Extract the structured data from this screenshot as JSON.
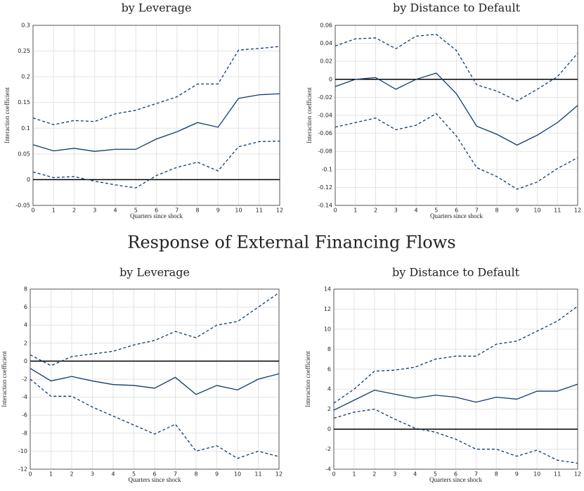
{
  "heading": "Response of External Financing Flows",
  "chart_data": [
    {
      "type": "line",
      "title": "by Leverage",
      "xlabel": "Quarters since shock",
      "ylabel": "Interaction coefficient",
      "x": [
        0,
        1,
        2,
        3,
        4,
        5,
        6,
        7,
        8,
        9,
        10,
        11,
        12
      ],
      "xlim": [
        0,
        12
      ],
      "xticks": [
        0,
        1,
        2,
        3,
        4,
        5,
        6,
        7,
        8,
        9,
        10,
        11,
        12
      ],
      "ylim": [
        -0.05,
        0.3
      ],
      "yticks": [
        -0.05,
        0,
        0.05,
        0.1,
        0.15,
        0.2,
        0.25,
        0.3
      ],
      "grid": true,
      "reference_line": 0,
      "reference_color": "#000000",
      "series": [
        {
          "color": "#0d3b6e",
          "dash": false,
          "values": [
            0.068,
            0.056,
            0.061,
            0.055,
            0.059,
            0.059,
            0.079,
            0.093,
            0.111,
            0.102,
            0.158,
            0.165,
            0.167
          ]
        },
        {
          "color": "#0d3b6e",
          "dash": true,
          "values": [
            0.12,
            0.107,
            0.115,
            0.113,
            0.128,
            0.135,
            0.148,
            0.161,
            0.186,
            0.186,
            0.252,
            0.255,
            0.259
          ]
        },
        {
          "color": "#0d3b6e",
          "dash": true,
          "values": [
            0.015,
            0.004,
            0.006,
            -0.003,
            -0.01,
            -0.016,
            0.008,
            0.024,
            0.034,
            0.017,
            0.064,
            0.074,
            0.075
          ]
        }
      ]
    },
    {
      "type": "line",
      "title": "by Distance to Default",
      "xlabel": "Quarters since shock",
      "ylabel": "Interaction coefficient",
      "x": [
        0,
        1,
        2,
        3,
        4,
        5,
        6,
        7,
        8,
        9,
        10,
        11,
        12
      ],
      "xlim": [
        0,
        12
      ],
      "xticks": [
        0,
        1,
        2,
        3,
        4,
        5,
        6,
        7,
        8,
        9,
        10,
        11,
        12
      ],
      "ylim": [
        -0.14,
        0.06
      ],
      "yticks": [
        -0.14,
        -0.12,
        -0.1,
        -0.08,
        -0.06,
        -0.04,
        -0.02,
        0,
        0.02,
        0.04,
        0.06
      ],
      "grid": true,
      "reference_line": 0,
      "reference_color": "#000000",
      "series": [
        {
          "color": "#0d3b6e",
          "dash": false,
          "values": [
            -0.008,
            0,
            0.002,
            -0.011,
            0,
            0.007,
            -0.016,
            -0.052,
            -0.061,
            -0.073,
            -0.062,
            -0.048,
            -0.029
          ]
        },
        {
          "color": "#0d3b6e",
          "dash": true,
          "values": [
            0.037,
            0.045,
            0.046,
            0.034,
            0.048,
            0.05,
            0.032,
            -0.006,
            -0.013,
            -0.024,
            -0.011,
            0.003,
            0.029
          ]
        },
        {
          "color": "#0d3b6e",
          "dash": true,
          "values": [
            -0.053,
            -0.048,
            -0.043,
            -0.056,
            -0.051,
            -0.038,
            -0.063,
            -0.098,
            -0.108,
            -0.122,
            -0.114,
            -0.099,
            -0.087
          ]
        }
      ]
    },
    {
      "type": "line",
      "title": "by Leverage",
      "xlabel": "Quarters since shock",
      "ylabel": "Interaction coefficient",
      "x": [
        0,
        1,
        2,
        3,
        4,
        5,
        6,
        7,
        8,
        9,
        10,
        11,
        12
      ],
      "xlim": [
        0,
        12
      ],
      "xticks": [
        0,
        1,
        2,
        3,
        4,
        5,
        6,
        7,
        8,
        9,
        10,
        11,
        12
      ],
      "ylim": [
        -12,
        8
      ],
      "yticks": [
        -12,
        -10,
        -8,
        -6,
        -4,
        -2,
        0,
        2,
        4,
        6,
        8
      ],
      "grid": true,
      "reference_line": 0,
      "reference_color": "#000000",
      "series": [
        {
          "color": "#0d3b6e",
          "dash": false,
          "values": [
            -0.8,
            -2.2,
            -1.7,
            -2.2,
            -2.6,
            -2.7,
            -3.0,
            -1.8,
            -3.7,
            -2.7,
            -3.2,
            -2.0,
            -1.4
          ]
        },
        {
          "color": "#0d3b6e",
          "dash": true,
          "values": [
            0.7,
            -0.5,
            0.5,
            0.8,
            1.1,
            1.8,
            2.3,
            3.3,
            2.6,
            4.0,
            4.4,
            6.0,
            7.6
          ]
        },
        {
          "color": "#0d3b6e",
          "dash": true,
          "values": [
            -2.0,
            -3.9,
            -3.9,
            -5.1,
            -6.1,
            -7.1,
            -8.1,
            -7.0,
            -10.0,
            -9.4,
            -10.8,
            -10.0,
            -10.6
          ]
        }
      ]
    },
    {
      "type": "line",
      "title": "by Distance to Default",
      "xlabel": "Quarters since shock",
      "ylabel": "Interaction coefficient",
      "x": [
        0,
        1,
        2,
        3,
        4,
        5,
        6,
        7,
        8,
        9,
        10,
        11,
        12
      ],
      "xlim": [
        0,
        12
      ],
      "xticks": [
        0,
        1,
        2,
        3,
        4,
        5,
        6,
        7,
        8,
        9,
        10,
        11,
        12
      ],
      "ylim": [
        -4,
        14
      ],
      "yticks": [
        -4,
        -2,
        0,
        2,
        4,
        6,
        8,
        10,
        12,
        14
      ],
      "grid": true,
      "reference_line": 0,
      "reference_color": "#000000",
      "series": [
        {
          "color": "#0d3b6e",
          "dash": false,
          "values": [
            1.9,
            2.9,
            3.9,
            3.5,
            3.1,
            3.4,
            3.2,
            2.7,
            3.2,
            3.0,
            3.8,
            3.8,
            4.5
          ]
        },
        {
          "color": "#0d3b6e",
          "dash": true,
          "values": [
            2.6,
            4.0,
            5.8,
            5.9,
            6.2,
            7.0,
            7.3,
            7.3,
            8.5,
            8.8,
            9.8,
            10.8,
            12.3
          ]
        },
        {
          "color": "#0d3b6e",
          "dash": true,
          "values": [
            1.1,
            1.7,
            2.0,
            1.0,
            0.1,
            -0.3,
            -1.0,
            -2.0,
            -2.0,
            -2.7,
            -2.1,
            -3.1,
            -3.4
          ]
        }
      ]
    }
  ]
}
